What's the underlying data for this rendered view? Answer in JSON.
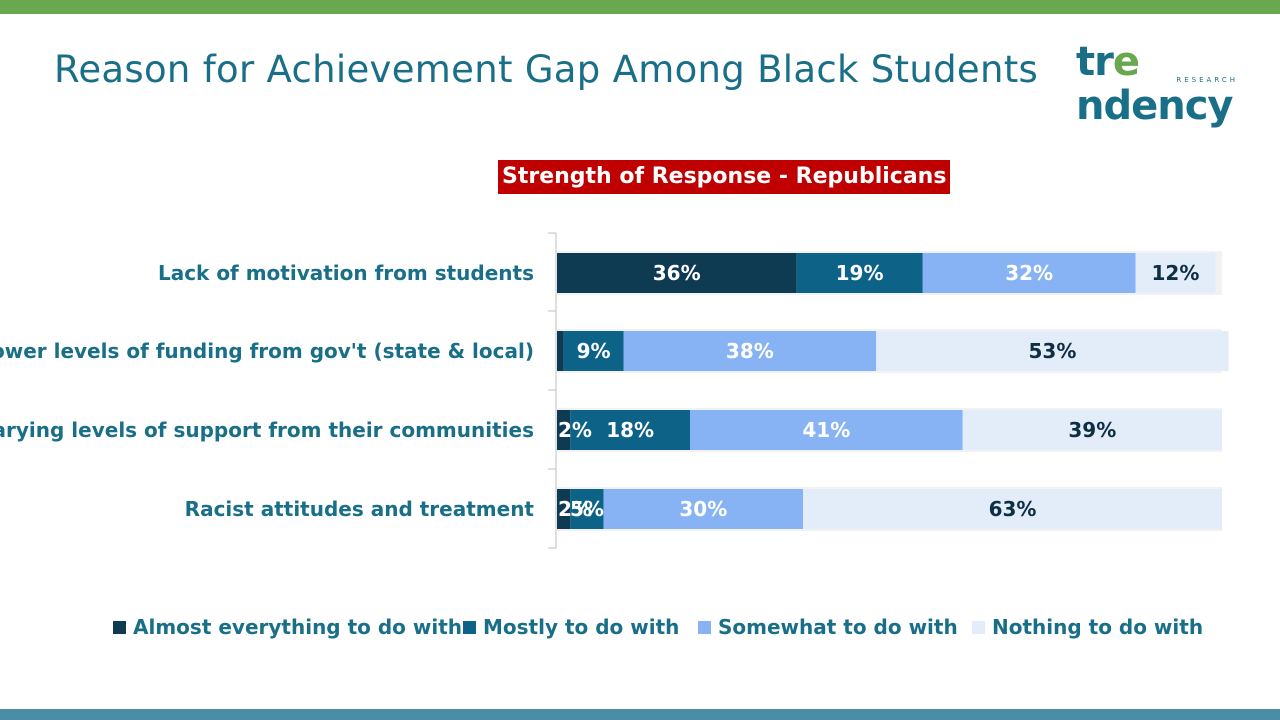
{
  "page": {
    "title": "Reason for Achievement Gap Among Black Students",
    "top_bar_color": "#6aa84f",
    "bottom_bar_color": "#4a8ea6",
    "title_color": "#1a6f88"
  },
  "logo": {
    "word": "trendency",
    "word_prefix": "tr",
    "word_mark": "e",
    "word_suffix": "ndency",
    "sub": "RESEARCH",
    "color": "#1a6f88",
    "accent_color": "#6aa84f"
  },
  "chart_data": {
    "type": "bar",
    "orientation": "horizontal",
    "stacked": true,
    "title": "Strength of Response - Republicans",
    "title_bg_color": "#c00000",
    "categories": [
      "Lack of motivation from students",
      "Lower levels of funding from gov't (state & local)",
      "Varying levels of support from their communities",
      "Racist attitudes and treatment"
    ],
    "series": [
      {
        "name": "Almost everything to do with",
        "color": "#0e3a52",
        "label_color": "#ffffff",
        "values": [
          36,
          1,
          2,
          2
        ],
        "labels": [
          "36%",
          "",
          "2%",
          "2%"
        ]
      },
      {
        "name": "Mostly to do with",
        "color": "#0d6288",
        "label_color": "#ffffff",
        "values": [
          19,
          9,
          18,
          5
        ],
        "labels": [
          "19%",
          "9%",
          "18%",
          "5%"
        ]
      },
      {
        "name": "Somewhat to do with",
        "color": "#87b3f5",
        "label_color": "#ffffff",
        "values": [
          32,
          38,
          41,
          30
        ],
        "labels": [
          "32%",
          "38%",
          "41%",
          "30%"
        ]
      },
      {
        "name": "Nothing to do with",
        "color": "#e3edf9",
        "label_color": "#0e2e44",
        "values": [
          12,
          53,
          39,
          63
        ],
        "labels": [
          "12%",
          "53%",
          "39%",
          "63%"
        ]
      }
    ],
    "xlim": [
      0,
      100
    ],
    "category_label_color": "#1a6f88",
    "legend_position": "bottom",
    "grid": false
  }
}
